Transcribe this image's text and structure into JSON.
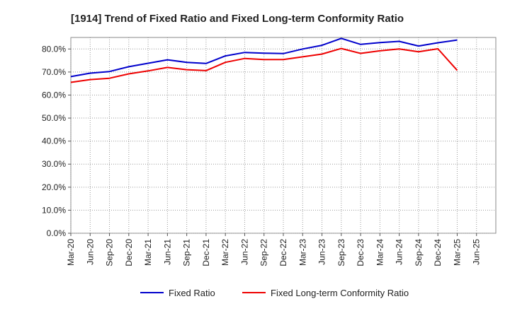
{
  "chart_data": {
    "type": "line",
    "title": "[1914]  Trend of Fixed Ratio and Fixed Long-term Conformity Ratio",
    "xlabel": "",
    "ylabel": "",
    "x": [
      "Mar-20",
      "Jun-20",
      "Sep-20",
      "Dec-20",
      "Mar-21",
      "Jun-21",
      "Sep-21",
      "Dec-21",
      "Mar-22",
      "Jun-22",
      "Sep-22",
      "Dec-22",
      "Mar-23",
      "Jun-23",
      "Sep-23",
      "Dec-23",
      "Mar-24",
      "Jun-24",
      "Sep-24",
      "Dec-24",
      "Mar-25"
    ],
    "x_ticks": [
      "Mar-20",
      "Jun-20",
      "Sep-20",
      "Dec-20",
      "Mar-21",
      "Jun-21",
      "Sep-21",
      "Dec-21",
      "Mar-22",
      "Jun-22",
      "Sep-22",
      "Dec-22",
      "Mar-23",
      "Jun-23",
      "Sep-23",
      "Dec-23",
      "Mar-24",
      "Jun-24",
      "Sep-24",
      "Dec-24",
      "Mar-25",
      "Jun-25"
    ],
    "y_ticks": [
      "0.0%",
      "10.0%",
      "20.0%",
      "30.0%",
      "40.0%",
      "50.0%",
      "60.0%",
      "70.0%",
      "80.0%"
    ],
    "ylim": [
      0,
      85
    ],
    "grid": true,
    "legend_position": "bottom",
    "series": [
      {
        "name": "Fixed Ratio",
        "color": "#0000cc",
        "values": [
          68.0,
          69.5,
          70.2,
          72.3,
          73.8,
          75.3,
          74.2,
          73.7,
          77.0,
          78.5,
          78.2,
          78.0,
          80.0,
          81.6,
          84.6,
          82.0,
          82.8,
          83.3,
          81.3,
          82.7,
          83.9
        ]
      },
      {
        "name": "Fixed Long-term Conformity Ratio",
        "color": "#ee0000",
        "values": [
          65.5,
          66.7,
          67.3,
          69.2,
          70.5,
          72.0,
          71.0,
          70.6,
          74.2,
          75.9,
          75.4,
          75.4,
          76.6,
          77.8,
          80.2,
          78.1,
          79.2,
          80.0,
          78.8,
          80.1,
          70.7
        ]
      }
    ]
  }
}
